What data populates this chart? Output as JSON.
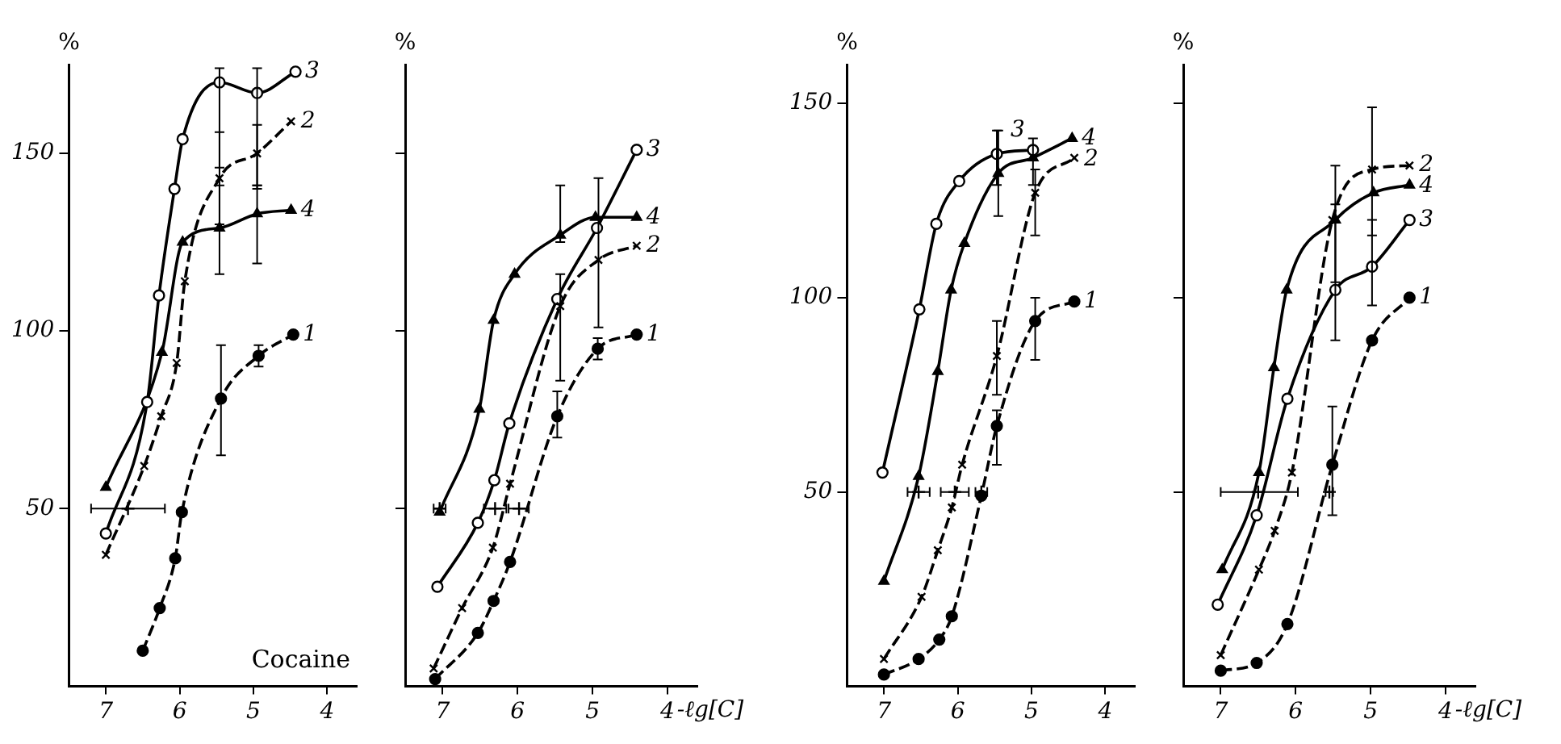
{
  "chart_data": [
    {
      "type": "line",
      "title": "Cocaine",
      "ylabel": "%",
      "xlim": [
        7.5,
        3.6
      ],
      "xticks": [
        7,
        6,
        5,
        4
      ],
      "ylim": [
        0,
        175
      ],
      "yticks": [
        50,
        100,
        150
      ],
      "legend": false,
      "series": [
        {
          "name": "1",
          "color": "#000000",
          "marker": "circle",
          "line_style": "dashed",
          "x": [
            6.5,
            6.27,
            6.06,
            5.97,
            5.44,
            4.93,
            4.46
          ],
          "values": [
            10,
            22,
            36,
            49,
            81,
            93,
            99
          ],
          "errors": [
            null,
            null,
            null,
            null,
            [
              65,
              96
            ],
            [
              90,
              96
            ],
            null
          ]
        },
        {
          "name": "2",
          "color": "#000000",
          "marker": "cross",
          "line_style": "dashed",
          "x": [
            7.0,
            6.48,
            6.25,
            6.04,
            5.93,
            5.46,
            4.95,
            4.49
          ],
          "values": [
            37,
            62,
            76,
            91,
            114,
            143,
            150,
            159
          ],
          "errors": [
            null,
            null,
            null,
            null,
            null,
            [
              130,
              156
            ],
            [
              141,
              158
            ],
            null
          ]
        },
        {
          "name": "3",
          "color": "#000000",
          "marker": "circle",
          "line_style": "solid",
          "x": [
            7.0,
            6.44,
            6.28,
            6.07,
            5.96,
            5.46,
            4.95,
            4.43
          ],
          "values": [
            43,
            80,
            110,
            140,
            154,
            170,
            167,
            173
          ],
          "errors": [
            null,
            null,
            null,
            null,
            null,
            [
              146,
              174
            ],
            [
              140,
              174
            ],
            null
          ]
        },
        {
          "name": "4",
          "color": "#000000",
          "marker": "triangle",
          "line_style": "solid",
          "x": [
            7.0,
            6.24,
            5.96,
            5.46,
            4.95,
            4.49
          ],
          "values": [
            56,
            94,
            125,
            129,
            133,
            134
          ],
          "errors": [
            null,
            null,
            null,
            [
              116,
              141
            ],
            [
              119,
              141
            ],
            null
          ]
        },
        {
          "type": "scatter",
          "color": "#000000",
          "marker": "cross",
          "x": [
            6.7
          ],
          "values": [
            50
          ],
          "xerrors": [
            [
              6.2,
              7.2
            ]
          ]
        }
      ]
    },
    {
      "type": "line",
      "ylabel": "%",
      "xlabel": "-ℓg[C]",
      "xlim": [
        7.5,
        3.6
      ],
      "xticks": [
        7,
        6,
        5,
        4
      ],
      "ylim": [
        0,
        175
      ],
      "yticks": [
        50,
        100,
        150
      ],
      "tick_labels": "x",
      "legend": false,
      "series": [
        {
          "name": "1",
          "color": "#000000",
          "marker": "circle",
          "line_style": "dashed",
          "x": [
            7.1,
            6.53,
            6.32,
            6.1,
            5.47,
            4.93,
            4.41
          ],
          "values": [
            2,
            15,
            24,
            35,
            76,
            95,
            99
          ],
          "errors": [
            null,
            null,
            null,
            null,
            [
              70,
              83
            ],
            [
              92,
              98
            ],
            null
          ]
        },
        {
          "name": "2",
          "color": "#000000",
          "marker": "cross",
          "line_style": "dashed",
          "x": [
            7.12,
            6.74,
            6.33,
            6.1,
            5.43,
            4.92,
            4.41
          ],
          "values": [
            5,
            22,
            39,
            57,
            107,
            120,
            124
          ],
          "errors": [
            null,
            null,
            null,
            null,
            [
              86,
              116
            ],
            [
              101,
              143
            ],
            null
          ]
        },
        {
          "name": "3",
          "color": "#000000",
          "marker": "circle",
          "line_style": "solid",
          "x": [
            7.07,
            6.53,
            6.31,
            6.11,
            5.47,
            4.94,
            4.41
          ],
          "values": [
            28,
            46,
            58,
            74,
            109,
            129,
            151
          ]
        },
        {
          "name": "4",
          "color": "#000000",
          "marker": "triangle",
          "line_style": "solid",
          "x": [
            7.04,
            6.51,
            6.32,
            6.04,
            5.43,
            4.96,
            4.41
          ],
          "values": [
            49,
            78,
            103,
            116,
            127,
            132,
            132
          ],
          "errors": [
            null,
            null,
            null,
            null,
            [
              125,
              141
            ],
            null,
            null
          ]
        },
        {
          "type": "scatter",
          "color": "#000000",
          "marker": "cross",
          "x": [
            7.04,
            6.3,
            5.98
          ],
          "values": [
            50,
            50,
            50
          ],
          "xerrors": [
            [
              6.96,
              7.12
            ],
            [
              6.15,
              6.45
            ],
            [
              5.85,
              6.12
            ]
          ]
        }
      ]
    },
    {
      "type": "line",
      "ylabel": "%",
      "xlim": [
        7.5,
        3.6
      ],
      "xticks": [
        7,
        6,
        5,
        4
      ],
      "ylim": [
        0,
        160
      ],
      "yticks": [
        50,
        100,
        150
      ],
      "legend": false,
      "series": [
        {
          "name": "1",
          "color": "#000000",
          "marker": "circle",
          "line_style": "dashed",
          "x": [
            7.0,
            6.53,
            6.25,
            6.08,
            5.68,
            5.47,
            4.95,
            4.42
          ],
          "values": [
            3,
            7,
            12,
            18,
            49,
            67,
            94,
            99
          ],
          "errors": [
            null,
            null,
            null,
            null,
            null,
            [
              57,
              71
            ],
            [
              84,
              100
            ],
            null
          ]
        },
        {
          "name": "2",
          "color": "#000000",
          "marker": "cross",
          "line_style": "dashed",
          "x": [
            7.0,
            6.49,
            6.27,
            6.08,
            5.94,
            5.47,
            4.95,
            4.42
          ],
          "values": [
            7,
            23,
            35,
            46,
            57,
            85,
            127,
            136
          ],
          "errors": [
            null,
            null,
            null,
            null,
            null,
            [
              75,
              94
            ],
            [
              116,
              133
            ],
            null
          ]
        },
        {
          "name": "3",
          "color": "#000000",
          "marker": "circle",
          "line_style": "solid",
          "x": [
            7.02,
            6.52,
            6.29,
            5.98,
            5.47,
            4.98
          ],
          "values": [
            55,
            97,
            119,
            130,
            137,
            138
          ],
          "errors": [
            null,
            null,
            null,
            null,
            [
              129,
              143
            ],
            null
          ]
        },
        {
          "name": "4",
          "color": "#000000",
          "marker": "triangle",
          "line_style": "solid",
          "x": [
            7.0,
            6.53,
            6.27,
            6.09,
            5.91,
            5.45,
            4.98,
            4.45
          ],
          "values": [
            27,
            54,
            81,
            102,
            114,
            132,
            136,
            141
          ],
          "errors": [
            null,
            null,
            null,
            null,
            null,
            [
              121,
              143
            ],
            [
              129,
              141
            ],
            null
          ]
        },
        {
          "type": "scatter",
          "color": "#000000",
          "marker": "cross",
          "x": [
            6.53,
            6.04,
            5.68
          ],
          "values": [
            50,
            50,
            50
          ],
          "xerrors": [
            [
              6.38,
              6.68
            ],
            [
              5.85,
              6.23
            ],
            [
              5.6,
              5.76
            ]
          ]
        }
      ]
    },
    {
      "type": "line",
      "ylabel": "%",
      "xlabel": "-ℓg[C]",
      "xlim": [
        7.5,
        3.6
      ],
      "xticks": [
        7,
        6,
        5,
        4
      ],
      "ylim": [
        0,
        160
      ],
      "yticks": [
        50,
        100,
        150
      ],
      "tick_labels": "x",
      "legend": false,
      "series": [
        {
          "name": "1",
          "color": "#000000",
          "marker": "circle",
          "line_style": "dashed",
          "x": [
            7.0,
            6.52,
            6.11,
            5.51,
            4.98,
            4.48
          ],
          "values": [
            4,
            6,
            16,
            57,
            89,
            100
          ],
          "errors": [
            null,
            null,
            null,
            [
              44,
              72
            ],
            null,
            null
          ]
        },
        {
          "name": "2",
          "color": "#000000",
          "marker": "cross",
          "line_style": "dashed",
          "x": [
            7.0,
            6.49,
            6.28,
            6.05,
            5.51,
            4.98,
            4.48
          ],
          "values": [
            8,
            30,
            40,
            55,
            120,
            133,
            134
          ],
          "errors": [
            null,
            null,
            null,
            null,
            null,
            [
              116,
              149
            ],
            null
          ]
        },
        {
          "name": "3",
          "color": "#000000",
          "marker": "circle",
          "line_style": "solid",
          "x": [
            7.04,
            6.52,
            6.11,
            5.47,
            4.98,
            4.48
          ],
          "values": [
            21,
            44,
            74,
            102,
            108,
            120
          ],
          "errors": [
            null,
            null,
            null,
            [
              89,
              124
            ],
            [
              98,
              120
            ],
            null
          ]
        },
        {
          "name": "4",
          "color": "#000000",
          "marker": "triangle",
          "line_style": "solid",
          "x": [
            6.98,
            6.49,
            6.29,
            6.12,
            5.47,
            4.96,
            4.48
          ],
          "values": [
            30,
            55,
            82,
            102,
            120,
            127,
            129
          ],
          "errors": [
            null,
            null,
            null,
            null,
            [
              104,
              134
            ],
            null,
            null
          ]
        },
        {
          "type": "scatter",
          "color": "#000000",
          "marker": "cross",
          "x": [
            6.5,
            5.55
          ],
          "values": [
            50,
            50
          ],
          "xerrors": [
            [
              5.97,
              7.0
            ],
            [
              5.5,
              5.6
            ]
          ]
        }
      ]
    }
  ]
}
